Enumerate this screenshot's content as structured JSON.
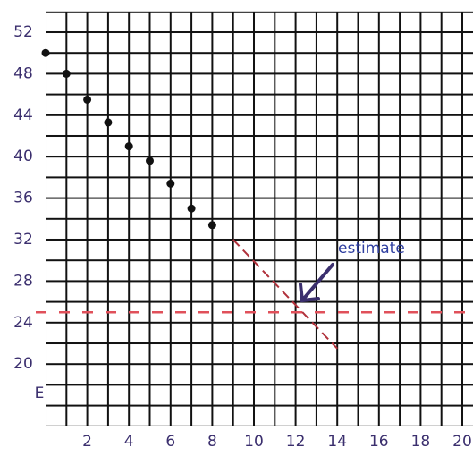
{
  "chart_data": {
    "type": "scatter",
    "x": [
      0,
      1,
      2,
      3,
      4,
      5,
      6,
      7,
      8
    ],
    "values": [
      50,
      48,
      45.5,
      43.3,
      41,
      39.6,
      37.4,
      35,
      33.4
    ],
    "color": "#111111",
    "xlim": [
      0,
      20
    ],
    "ylim": [
      14,
      54
    ],
    "xticks": [
      2,
      4,
      6,
      8,
      10,
      12,
      14,
      16,
      18,
      20
    ],
    "yticks": [
      20,
      24,
      28,
      32,
      36,
      40,
      44,
      48,
      52
    ],
    "y_label": "E",
    "reference_line": {
      "y": 25,
      "color": "#e0505a"
    },
    "trend_line": {
      "x": [
        9,
        14
      ],
      "y": [
        32,
        21.5
      ],
      "color": "#b0303a"
    },
    "annotation": "estimate"
  }
}
